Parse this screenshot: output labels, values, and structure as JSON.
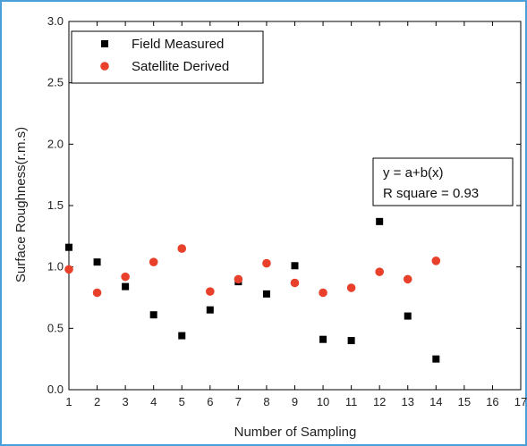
{
  "chart_data": {
    "type": "scatter",
    "xlabel": "Number of Sampling",
    "ylabel": "Surface Roughness(r.m.s)",
    "xlim": [
      1,
      17
    ],
    "ylim": [
      0.0,
      3.0
    ],
    "x_ticks": [
      1,
      2,
      3,
      4,
      5,
      6,
      7,
      8,
      9,
      10,
      11,
      12,
      13,
      14,
      15,
      16,
      17
    ],
    "y_ticks": [
      "0.0",
      "0.5",
      "1.0",
      "1.5",
      "2.0",
      "2.5",
      "3.0"
    ],
    "grid": false,
    "legend_position": "top-left",
    "series": [
      {
        "name": "Field Measured",
        "marker": "square",
        "color": "#000000",
        "x": [
          1,
          2,
          3,
          4,
          5,
          6,
          7,
          8,
          9,
          10,
          11,
          12,
          13,
          14
        ],
        "y": [
          1.16,
          1.04,
          0.84,
          0.61,
          0.44,
          0.65,
          0.88,
          0.78,
          1.01,
          0.41,
          0.4,
          1.37,
          0.6,
          0.25
        ]
      },
      {
        "name": "Satellite Derived",
        "marker": "circle",
        "color": "#e8402a",
        "x": [
          1,
          2,
          3,
          4,
          5,
          6,
          7,
          8,
          9,
          10,
          11,
          12,
          13,
          14
        ],
        "y": [
          0.98,
          0.79,
          0.92,
          1.04,
          1.15,
          0.8,
          0.9,
          1.03,
          0.87,
          0.79,
          0.83,
          0.96,
          0.9,
          1.05
        ]
      }
    ],
    "annotation": {
      "line1": "y = a+b(x)",
      "line2": "R square = 0.93"
    }
  }
}
